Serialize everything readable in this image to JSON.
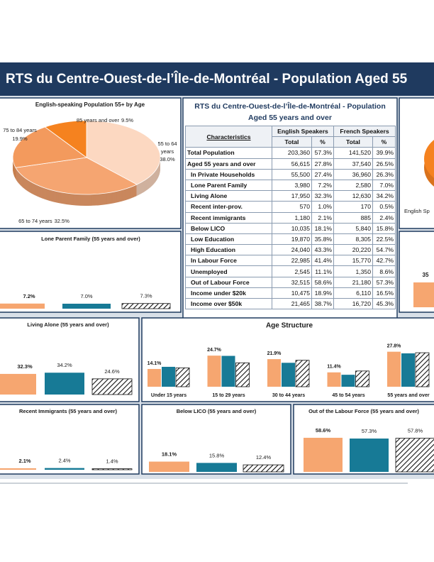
{
  "header": {
    "title": "RTS du Centre-Ouest-de-l’Île-de-Montréal - Population Aged 55"
  },
  "table": {
    "title": "RTS du Centre-Ouest-de-l’Île-de-Montréal - Population Aged 55 years and over",
    "columns": [
      "Characteristics",
      "English Speakers",
      "French Speakers"
    ],
    "subcolumns": [
      "Total",
      "%",
      "Total",
      "%"
    ],
    "rows": [
      [
        "Total Population",
        "203,360",
        "57.3%",
        "141,520",
        "39.9%"
      ],
      [
        "Aged 55 years and over",
        "56,615",
        "27.8%",
        "37,540",
        "26.5%"
      ],
      [
        "In Private Households",
        "55,500",
        "27.4%",
        "36,960",
        "26.3%"
      ],
      [
        "Lone Parent Family",
        "3,980",
        "7.2%",
        "2,580",
        "7.0%"
      ],
      [
        "Living Alone",
        "17,950",
        "32.3%",
        "12,630",
        "34.2%"
      ],
      [
        "Recent inter-prov.",
        "570",
        "1.0%",
        "170",
        "0.5%"
      ],
      [
        "Recent immigrants",
        "1,180",
        "2.1%",
        "885",
        "2.4%"
      ],
      [
        "Below LICO",
        "10,035",
        "18.1%",
        "5,840",
        "15.8%"
      ],
      [
        "Low Education",
        "19,870",
        "35.8%",
        "8,305",
        "22.5%"
      ],
      [
        "High Education",
        "24,040",
        "43.3%",
        "20,220",
        "54.7%"
      ],
      [
        "In Labour Force",
        "22,985",
        "41.4%",
        "15,770",
        "42.7%"
      ],
      [
        "Unemployed",
        "2,545",
        "11.1%",
        "1,350",
        "8.6%"
      ],
      [
        "Out of Labour Force",
        "32,515",
        "58.6%",
        "21,180",
        "57.3%"
      ],
      [
        "Income under $20k",
        "10,475",
        "18.9%",
        "6,110",
        "16.5%"
      ],
      [
        "Income over $50k",
        "21,465",
        "38.7%",
        "16,720",
        "45.3%"
      ]
    ]
  },
  "fragments": {
    "pie_label": "English Sp",
    "bar_label": "35"
  },
  "chart_data": [
    {
      "type": "pie",
      "title": "English-speaking Population 55+ by Age",
      "categories": [
        "55 to 64 years",
        "65 to 74 years",
        "75 to 84 years",
        "85 years and over"
      ],
      "values": [
        38.0,
        32.5,
        19.9,
        9.5
      ],
      "value_labels": [
        "38.0%",
        "32.5%",
        "19.9%",
        "9.5%"
      ],
      "colors": [
        "#fcd8c1",
        "#f5a571",
        "#f39a5d",
        "#f5821f"
      ]
    },
    {
      "type": "bar",
      "title": "Lone Parent Family (55 years and over)",
      "values": [
        7.2,
        7.0,
        7.3
      ],
      "value_labels": [
        "7.2%",
        "7.0%",
        "7.3%"
      ],
      "colors": [
        "#f6a670",
        "#177a96",
        "hatch"
      ],
      "ylim": [
        0,
        100
      ]
    },
    {
      "type": "bar",
      "title": "Living Alone (55 years and over)",
      "values": [
        32.3,
        34.2,
        24.6
      ],
      "value_labels": [
        "32.3%",
        "34.2%",
        "24.6%"
      ],
      "colors": [
        "#f6a670",
        "#177a96",
        "hatch"
      ],
      "ylim": [
        0,
        100
      ]
    },
    {
      "type": "grouped_bar",
      "title": "Age Structure",
      "categories": [
        "Under 15 years",
        "15 to 29 years",
        "30 to 44 years",
        "45 to 54 years",
        "55 years and over"
      ],
      "series": [
        {
          "color": "#f6a670",
          "values": [
            14.1,
            24.7,
            21.9,
            11.4,
            27.8
          ],
          "value_labels": [
            "14.1%",
            "24.7%",
            "21.9%",
            "11.4%",
            "27.8%"
          ]
        },
        {
          "color": "#177a96",
          "values": [
            15.8,
            24.5,
            19.0,
            9.5,
            26.5
          ]
        },
        {
          "color": "hatch",
          "values": [
            15.0,
            19.0,
            21.0,
            12.5,
            27.0
          ]
        }
      ],
      "ylim": [
        0,
        40
      ]
    },
    {
      "type": "bar",
      "title": "Recent Immigrants (55 years and over)",
      "values": [
        2.1,
        2.4,
        1.4
      ],
      "value_labels": [
        "2.1%",
        "2.4%",
        "1.4%"
      ],
      "colors": [
        "#f6a670",
        "#177a96",
        "hatch"
      ],
      "ylim": [
        0,
        100
      ]
    },
    {
      "type": "bar",
      "title": "Below LICO (55 years and over)",
      "values": [
        18.1,
        15.8,
        12.4
      ],
      "value_labels": [
        "18.1%",
        "15.8%",
        "12.4%"
      ],
      "colors": [
        "#f6a670",
        "#177a96",
        "hatch"
      ],
      "ylim": [
        0,
        100
      ]
    },
    {
      "type": "bar",
      "title": "Out of the Labour Force (55 years and over)",
      "values": [
        58.6,
        57.3,
        57.8
      ],
      "value_labels": [
        "58.6%",
        "57.3%",
        "57.8%"
      ],
      "colors": [
        "#f6a670",
        "#177a96",
        "hatch"
      ],
      "ylim": [
        0,
        100
      ]
    }
  ]
}
